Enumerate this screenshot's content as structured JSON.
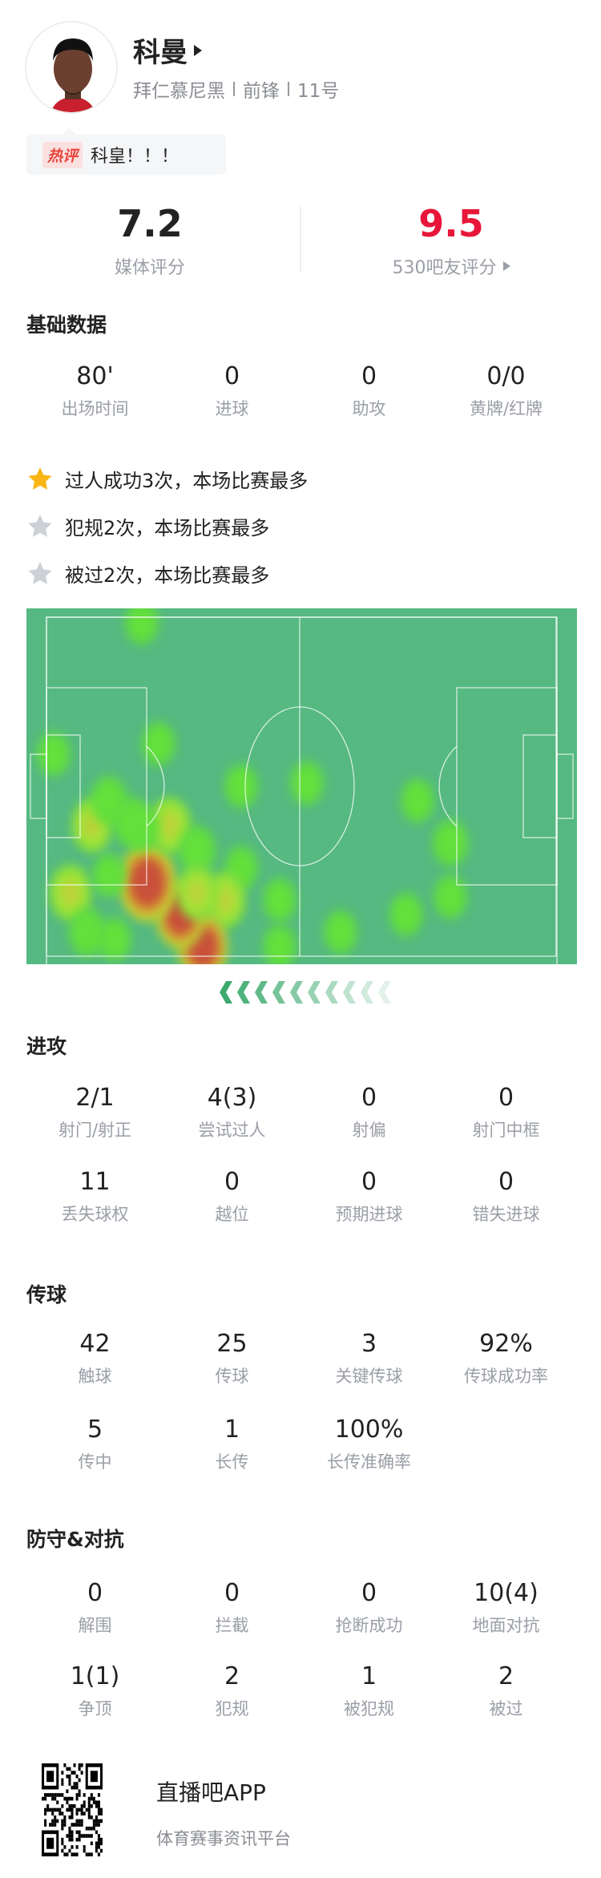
{
  "player": {
    "name": "科曼",
    "team": "拜仁慕尼黑",
    "position": "前锋",
    "number": "11号"
  },
  "hot_comment": {
    "badge": "热评",
    "text": "科皇！！！"
  },
  "ratings": {
    "media": {
      "value": "7.2",
      "label": "媒体评分"
    },
    "fans": {
      "value": "9.5",
      "label": "530吧友评分",
      "color": "#e8173a"
    }
  },
  "basic": {
    "title": "基础数据",
    "stats": [
      {
        "value": "80'",
        "label": "出场时间"
      },
      {
        "value": "0",
        "label": "进球"
      },
      {
        "value": "0",
        "label": "助攻"
      },
      {
        "value": "0/0",
        "label": "黄牌/红牌"
      }
    ]
  },
  "highlights": [
    {
      "icon": "star-gold-icon",
      "text": "过人成功3次，本场比赛最多"
    },
    {
      "icon": "star-silver-icon",
      "text": "犯规2次，本场比赛最多"
    },
    {
      "icon": "star-silver-icon",
      "text": "被过2次，本场比赛最多"
    }
  ],
  "heatmap": {
    "attack_direction": "left",
    "spots": [
      [
        0.21,
        0.04,
        1
      ],
      [
        0.05,
        0.41,
        1
      ],
      [
        0.24,
        0.38,
        1
      ],
      [
        0.39,
        0.5,
        1
      ],
      [
        0.51,
        0.49,
        1
      ],
      [
        0.71,
        0.54,
        1
      ],
      [
        0.77,
        0.66,
        1.3
      ],
      [
        0.77,
        0.81,
        1
      ],
      [
        0.69,
        0.86,
        1
      ],
      [
        0.57,
        0.91,
        1
      ],
      [
        0.46,
        0.82,
        1
      ],
      [
        0.46,
        0.95,
        1
      ],
      [
        0.39,
        0.73,
        1
      ],
      [
        0.36,
        0.82,
        2
      ],
      [
        0.32,
        0.95,
        3
      ],
      [
        0.28,
        0.86,
        3
      ],
      [
        0.22,
        0.77,
        4
      ],
      [
        0.08,
        0.8,
        2
      ],
      [
        0.11,
        0.91,
        1.5
      ],
      [
        0.16,
        0.93,
        1
      ],
      [
        0.15,
        0.75,
        1
      ],
      [
        0.12,
        0.61,
        1.8
      ],
      [
        0.15,
        0.54,
        1.5
      ],
      [
        0.26,
        0.61,
        2
      ],
      [
        0.21,
        0.62,
        1.2
      ],
      [
        0.31,
        0.68,
        1.5
      ],
      [
        0.31,
        0.8,
        1.8
      ],
      [
        0.19,
        0.6,
        1.5
      ]
    ]
  },
  "attack": {
    "title": "进攻",
    "stats": [
      {
        "value": "2/1",
        "label": "射门/射正"
      },
      {
        "value": "4(3)",
        "label": "尝试过人"
      },
      {
        "value": "0",
        "label": "射偏"
      },
      {
        "value": "0",
        "label": "射门中框"
      },
      {
        "value": "11",
        "label": "丢失球权"
      },
      {
        "value": "0",
        "label": "越位"
      },
      {
        "value": "0",
        "label": "预期进球"
      },
      {
        "value": "0",
        "label": "错失进球"
      }
    ]
  },
  "passing": {
    "title": "传球",
    "stats": [
      {
        "value": "42",
        "label": "触球"
      },
      {
        "value": "25",
        "label": "传球"
      },
      {
        "value": "3",
        "label": "关键传球"
      },
      {
        "value": "92%",
        "label": "传球成功率"
      },
      {
        "value": "5",
        "label": "传中"
      },
      {
        "value": "1",
        "label": "长传"
      },
      {
        "value": "100%",
        "label": "长传准确率"
      }
    ]
  },
  "defense": {
    "title": "防守&对抗",
    "stats": [
      {
        "value": "0",
        "label": "解围"
      },
      {
        "value": "0",
        "label": "拦截"
      },
      {
        "value": "0",
        "label": "抢断成功"
      },
      {
        "value": "10(4)",
        "label": "地面对抗"
      },
      {
        "value": "1(1)",
        "label": "争顶"
      },
      {
        "value": "2",
        "label": "犯规"
      },
      {
        "value": "1",
        "label": "被犯规"
      },
      {
        "value": "2",
        "label": "被过"
      }
    ]
  },
  "footer": {
    "app_name": "直播吧APP",
    "tagline": "体育赛事资讯平台"
  }
}
